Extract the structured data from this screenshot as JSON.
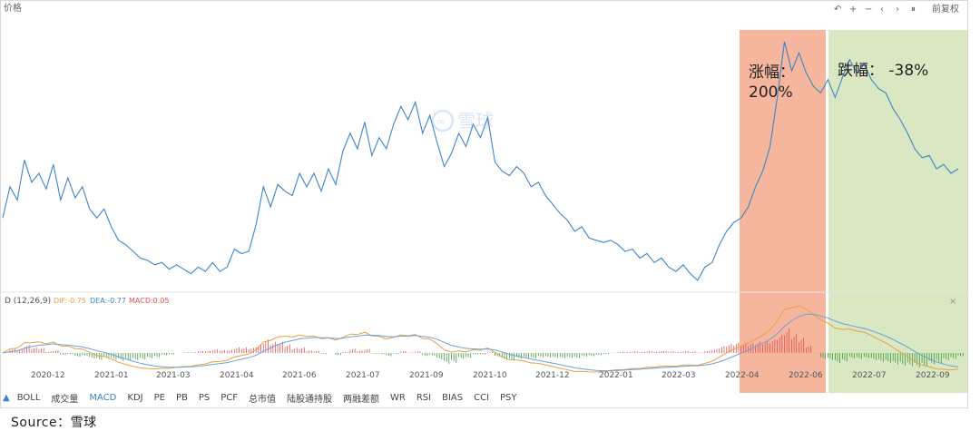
{
  "toolbar": {
    "left_label": "价格",
    "right_label": "前复权",
    "icons": [
      "undo-icon",
      "plus-icon",
      "minus-icon",
      "arrow-left-icon",
      "arrow-right-icon",
      "pause-icon"
    ]
  },
  "indicator": {
    "label": "D (12,26,9)",
    "dif": "DIF:-0.75",
    "dea": "DEA:-0.77",
    "macd": "MACD:0.05"
  },
  "tabs": [
    "BOLL",
    "成交量",
    "MACD",
    "KDJ",
    "PE",
    "PB",
    "PS",
    "PCF",
    "总市值",
    "陆股通持股",
    "两融差额",
    "WR",
    "RSI",
    "BIAS",
    "CCI",
    "PSY"
  ],
  "active_tab": "MACD",
  "watermark": "雪球",
  "source": "Source：雪球",
  "annotations": {
    "rise": {
      "line1": "涨幅：",
      "line2": "200%"
    },
    "fall": {
      "line1": "跌幅：  -38%"
    }
  },
  "colors": {
    "price": "#3d85c6",
    "dif": "#e8a046",
    "dea": "#6aa3d8",
    "bar_up": "#e05050",
    "bar_down": "#3c9a3c",
    "rise_zone": "#f4a98c",
    "fall_zone": "#d3e3b9"
  },
  "chart_data": {
    "type": "line",
    "x_ticks": [
      "2020-12",
      "2021-01",
      "2021-03",
      "2021-04",
      "2021-06",
      "2021-07",
      "2021-09",
      "2021-10",
      "2021-12",
      "2022-01",
      "2022-03",
      "2022-04",
      "2022-06",
      "2022-07",
      "2022-09"
    ],
    "series": [
      {
        "values": [
          0.48,
          0.62,
          0.56,
          0.74,
          0.64,
          0.68,
          0.61,
          0.72,
          0.56,
          0.66,
          0.57,
          0.62,
          0.52,
          0.48,
          0.52,
          0.44,
          0.38,
          0.36,
          0.33,
          0.3,
          0.29,
          0.27,
          0.28,
          0.25,
          0.27,
          0.25,
          0.23,
          0.26,
          0.24,
          0.28,
          0.24,
          0.26,
          0.34,
          0.32,
          0.33,
          0.45,
          0.62,
          0.53,
          0.63,
          0.6,
          0.58,
          0.68,
          0.62,
          0.68,
          0.6,
          0.7,
          0.63,
          0.78,
          0.86,
          0.79,
          0.91,
          0.76,
          0.84,
          0.79,
          0.9,
          0.98,
          0.92,
          1.0,
          0.86,
          0.94,
          0.82,
          0.71,
          0.77,
          0.86,
          0.8,
          0.9,
          0.84,
          0.93,
          0.73,
          0.69,
          0.67,
          0.71,
          0.68,
          0.62,
          0.64,
          0.58,
          0.54,
          0.5,
          0.47,
          0.42,
          0.44,
          0.39,
          0.38,
          0.37,
          0.38,
          0.36,
          0.33,
          0.34,
          0.3,
          0.32,
          0.28,
          0.3,
          0.26,
          0.24,
          0.27,
          0.23,
          0.2,
          0.26,
          0.28,
          0.36,
          0.42,
          0.46,
          0.48,
          0.53,
          0.62,
          0.69,
          0.8,
          1.02,
          1.27,
          1.14,
          1.22,
          1.13,
          1.07,
          1.04,
          1.1,
          1.02,
          1.11,
          1.19,
          1.13,
          1.17,
          1.1,
          1.06,
          1.04,
          0.97,
          0.92,
          0.86,
          0.79,
          0.75,
          0.76,
          0.7,
          0.72,
          0.68,
          0.7
        ]
      }
    ]
  }
}
